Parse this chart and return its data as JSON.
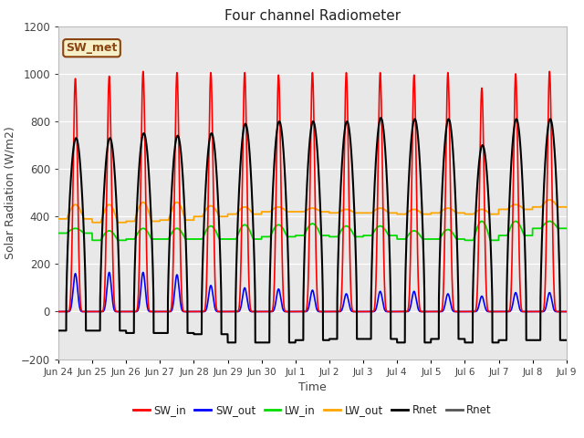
{
  "title": "Four channel Radiometer",
  "xlabel": "Time",
  "ylabel": "Solar Radiation (W/m2)",
  "ylim": [
    -200,
    1200
  ],
  "background_color": "#ffffff",
  "plot_bg_color": "#e8e8e8",
  "annotation_text": "SW_met",
  "annotation_bg": "#f5f0c8",
  "annotation_border": "#8b4513",
  "x_tick_labels": [
    "Jun 24",
    "Jun 25",
    "Jun 26",
    "Jun 27",
    "Jun 28",
    "Jun 29",
    "Jun 30",
    "Jul 1",
    "Jul 2",
    "Jul 3",
    "Jul 4",
    "Jul 5",
    "Jul 6",
    "Jul 7",
    "Jul 8",
    "Jul 9"
  ],
  "legend_entries": [
    "SW_in",
    "SW_out",
    "LW_in",
    "LW_out",
    "Rnet",
    "Rnet"
  ],
  "legend_colors": [
    "#ff0000",
    "#0000ff",
    "#00dd00",
    "#ffa500",
    "#000000",
    "#555555"
  ],
  "num_days": 15,
  "SW_in_peak": [
    980,
    990,
    1010,
    1005,
    1005,
    1005,
    995,
    1005,
    1005,
    1005,
    995,
    1005,
    940,
    1000,
    1010
  ],
  "SW_out_peak": [
    160,
    165,
    165,
    155,
    110,
    100,
    95,
    90,
    75,
    85,
    85,
    75,
    65,
    80,
    80
  ],
  "LW_in_base": [
    330,
    300,
    305,
    305,
    305,
    305,
    315,
    320,
    315,
    320,
    305,
    305,
    300,
    320,
    350
  ],
  "LW_out_base": [
    390,
    375,
    380,
    385,
    400,
    410,
    420,
    420,
    415,
    415,
    410,
    415,
    410,
    430,
    440
  ],
  "LW_in_peak": [
    350,
    340,
    350,
    350,
    360,
    365,
    365,
    370,
    360,
    360,
    340,
    345,
    380,
    380,
    380
  ],
  "LW_out_peak": [
    450,
    450,
    460,
    460,
    445,
    440,
    440,
    435,
    430,
    435,
    430,
    435,
    430,
    450,
    470
  ],
  "Rnet_peak": [
    730,
    730,
    750,
    740,
    750,
    790,
    800,
    800,
    800,
    815,
    810,
    810,
    700,
    810,
    810
  ],
  "Rnet_night": [
    -80,
    -80,
    -90,
    -90,
    -95,
    -130,
    -130,
    -120,
    -115,
    -115,
    -130,
    -115,
    -130,
    -120,
    -120
  ],
  "sw_rise": 6.0,
  "sw_set": 18.0,
  "sw_sharpness": 6,
  "rnet_rise": 5.5,
  "rnet_set": 19.5
}
